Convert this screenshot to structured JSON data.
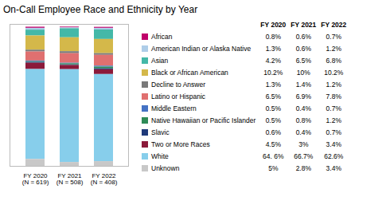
{
  "chart_data": {
    "type": "bar",
    "title": "On-Call Employee Race and Ethnicity by Year",
    "categories": [
      "FY 2020\n(N = 619)",
      "FY 2021\n(N = 508)",
      "FY 2022\n(N = 408)"
    ],
    "stacked": true,
    "ylim": [
      0,
      102
    ],
    "tick_labels": "x",
    "legend": "right",
    "table_header": [
      "FY 2020",
      "FY 2021",
      "FY 2022"
    ],
    "series": [
      {
        "name": "African",
        "color": "#C0006A",
        "values": [
          0.8,
          0.6,
          0.7
        ],
        "value_labels": [
          "0.8%",
          "0.6%",
          "0.7%"
        ]
      },
      {
        "name": "American Indian or Alaska Native",
        "color": "#AECDE8",
        "values": [
          1.3,
          0.6,
          1.2
        ],
        "value_labels": [
          "1.3%",
          "0.6%",
          "1.2%"
        ]
      },
      {
        "name": "Asian",
        "color": "#44B8A8",
        "values": [
          4.2,
          6.5,
          6.8
        ],
        "value_labels": [
          "4.2%",
          "6.5%",
          "6.8%"
        ]
      },
      {
        "name": "Black or African American",
        "color": "#D4B84A",
        "values": [
          10.2,
          10.0,
          10.2
        ],
        "value_labels": [
          "10.2%",
          "10%",
          "10.2%"
        ]
      },
      {
        "name": "Decline to Answer",
        "color": "#7A7A7A",
        "values": [
          1.3,
          1.4,
          1.2
        ],
        "value_labels": [
          "1.3%",
          "1.4%",
          "1.2%"
        ]
      },
      {
        "name": "Latino or Hispanic",
        "color": "#E07070",
        "values": [
          6.5,
          6.9,
          7.8
        ],
        "value_labels": [
          "6.5%",
          "6.9%",
          "7.8%"
        ]
      },
      {
        "name": "Middle Eastern",
        "color": "#4472C4",
        "values": [
          0.5,
          0.4,
          0.7
        ],
        "value_labels": [
          "0.5%",
          "0.4%",
          "0.7%"
        ]
      },
      {
        "name": "Native Hawaiian or Pacific Islander",
        "color": "#2E8B57",
        "values": [
          0.5,
          0.8,
          1.2
        ],
        "value_labels": [
          "0.5%",
          "0.8%",
          "1.2%"
        ]
      },
      {
        "name": "Slavic",
        "color": "#1F3A7A",
        "values": [
          0.6,
          0.4,
          0.7
        ],
        "value_labels": [
          "0.6%",
          "0.4%",
          "0.7%"
        ]
      },
      {
        "name": "Two or More Races",
        "color": "#8B1A3A",
        "values": [
          4.5,
          3.0,
          3.4
        ],
        "value_labels": [
          "4.5%",
          "3%",
          "3.4%"
        ]
      },
      {
        "name": "White",
        "color": "#87CEEB",
        "values": [
          64.6,
          66.7,
          62.6
        ],
        "value_labels": [
          "64. 6%",
          "66.7%",
          "62.6%"
        ]
      },
      {
        "name": "Unknown",
        "color": "#C8C8C8",
        "values": [
          5.0,
          2.8,
          3.4
        ],
        "value_labels": [
          "5%",
          "2.8%",
          "3.4%"
        ]
      }
    ]
  }
}
